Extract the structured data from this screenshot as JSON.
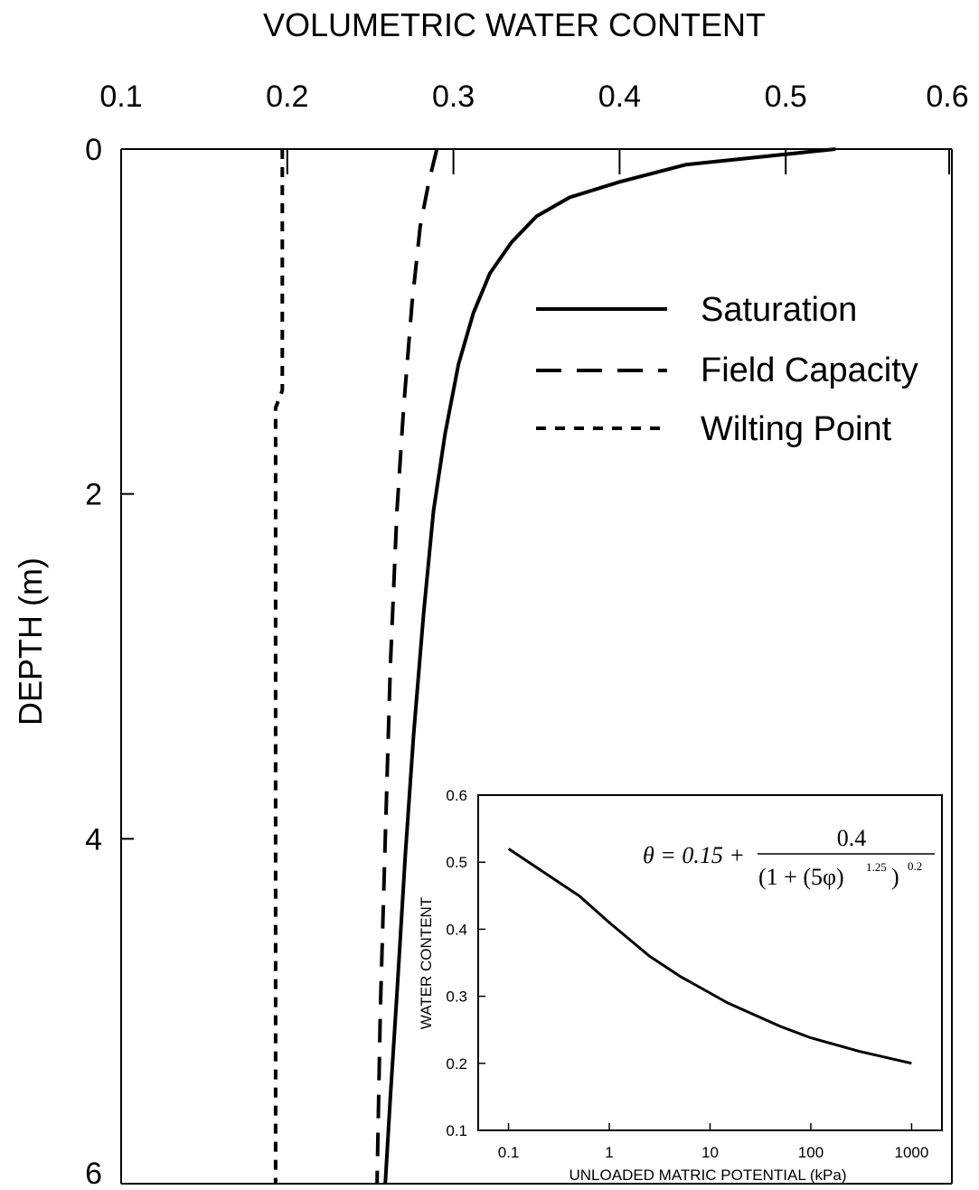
{
  "chart_data": [
    {
      "type": "line",
      "title": "VOLUMETRIC WATER CONTENT",
      "xlabel": "VOLUMETRIC WATER CONTENT",
      "ylabel": "DEPTH (m)",
      "xlim": [
        0.1,
        0.6
      ],
      "ylim": [
        6,
        0
      ],
      "x_axis_position": "top",
      "x_ticks": [
        "0.1",
        "0.2",
        "0.3",
        "0.4",
        "0.5",
        "0.6"
      ],
      "y_ticks": [
        "0",
        "2",
        "4",
        "6"
      ],
      "grid": false,
      "legend_position": "top-right",
      "series": [
        {
          "name": "Saturation",
          "style": "solid",
          "points": [
            {
              "x": 0.53,
              "y": 0.0
            },
            {
              "x": 0.44,
              "y": 0.09
            },
            {
              "x": 0.4,
              "y": 0.19
            },
            {
              "x": 0.37,
              "y": 0.28
            },
            {
              "x": 0.35,
              "y": 0.39
            },
            {
              "x": 0.335,
              "y": 0.54
            },
            {
              "x": 0.322,
              "y": 0.72
            },
            {
              "x": 0.312,
              "y": 0.95
            },
            {
              "x": 0.303,
              "y": 1.25
            },
            {
              "x": 0.295,
              "y": 1.65
            },
            {
              "x": 0.288,
              "y": 2.1
            },
            {
              "x": 0.282,
              "y": 2.7
            },
            {
              "x": 0.276,
              "y": 3.4
            },
            {
              "x": 0.271,
              "y": 4.1
            },
            {
              "x": 0.266,
              "y": 4.9
            },
            {
              "x": 0.262,
              "y": 5.5
            },
            {
              "x": 0.259,
              "y": 6.0
            }
          ]
        },
        {
          "name": "Field Capacity",
          "style": "dashed",
          "points": [
            {
              "x": 0.29,
              "y": 0.0
            },
            {
              "x": 0.285,
              "y": 0.2
            },
            {
              "x": 0.28,
              "y": 0.45
            },
            {
              "x": 0.275,
              "y": 0.9
            },
            {
              "x": 0.27,
              "y": 1.5
            },
            {
              "x": 0.266,
              "y": 2.1
            },
            {
              "x": 0.262,
              "y": 3.0
            },
            {
              "x": 0.259,
              "y": 4.0
            },
            {
              "x": 0.256,
              "y": 5.0
            },
            {
              "x": 0.254,
              "y": 6.0
            }
          ]
        },
        {
          "name": "Wilting Point",
          "style": "dotted",
          "points": [
            {
              "x": 0.197,
              "y": 0.0
            },
            {
              "x": 0.197,
              "y": 1.4
            },
            {
              "x": 0.193,
              "y": 1.5
            },
            {
              "x": 0.193,
              "y": 6.0
            }
          ]
        }
      ]
    },
    {
      "type": "line",
      "title": "",
      "xlabel": "UNLOADED MATRIC POTENTIAL (kPa)",
      "ylabel": "WATER CONTENT",
      "x_scale": "log",
      "xlim": [
        0.05,
        2000
      ],
      "ylim": [
        0.1,
        0.6
      ],
      "x_ticks": [
        "0.1",
        "1",
        "10",
        "100",
        "1000"
      ],
      "y_ticks": [
        "0.1",
        "0.2",
        "0.3",
        "0.4",
        "0.5",
        "0.6"
      ],
      "grid": false,
      "legend_position": "none",
      "equation": {
        "lhs": "θ = 0.15 +",
        "numerator": "0.4",
        "denominator": "(1 + (5φ)",
        "inner_exponent": "1.25",
        "denominator_close": ")",
        "outer_exponent": "0.2"
      },
      "series": [
        {
          "style": "solid",
          "points": [
            {
              "x": 0.1,
              "y": 0.52
            },
            {
              "x": 0.5,
              "y": 0.45
            },
            {
              "x": 1,
              "y": 0.41
            },
            {
              "x": 2.5,
              "y": 0.36
            },
            {
              "x": 5,
              "y": 0.33
            },
            {
              "x": 15,
              "y": 0.29
            },
            {
              "x": 50,
              "y": 0.255
            },
            {
              "x": 100,
              "y": 0.238
            },
            {
              "x": 300,
              "y": 0.218
            },
            {
              "x": 1000,
              "y": 0.2
            }
          ]
        }
      ]
    }
  ]
}
